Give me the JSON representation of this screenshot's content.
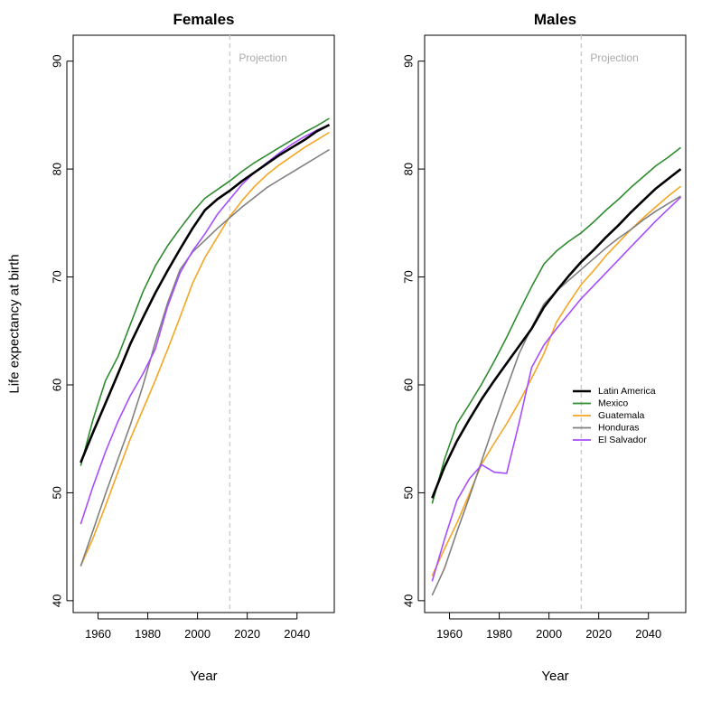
{
  "chart_data": [
    {
      "type": "line",
      "title": "Females",
      "xlabel": "Year",
      "ylabel": "Life expectancy at birth",
      "xlim": [
        1950,
        2055
      ],
      "ylim": [
        38.9,
        92.4
      ],
      "xticks": [
        1960,
        1980,
        2000,
        2020,
        2040
      ],
      "yticks": [
        40,
        50,
        60,
        70,
        80,
        90
      ],
      "projection_year": 2013,
      "projection_label": "Projection",
      "grid": false,
      "series": [
        {
          "name": "Latin America",
          "color": "#000000",
          "x": [
            1953,
            1958,
            1963,
            1968,
            1973,
            1978,
            1983,
            1988,
            1993,
            1998,
            2003,
            2008,
            2013,
            2018,
            2023,
            2028,
            2033,
            2038,
            2043,
            2048,
            2053
          ],
          "y": [
            52.8,
            55.6,
            58.3,
            61.0,
            63.8,
            66.2,
            68.5,
            70.6,
            72.6,
            74.5,
            76.2,
            77.2,
            78.0,
            78.9,
            79.7,
            80.5,
            81.3,
            82.0,
            82.7,
            83.5,
            84.1
          ]
        },
        {
          "name": "Mexico",
          "color": "#2e8b2e",
          "x": [
            1953,
            1958,
            1963,
            1968,
            1973,
            1978,
            1983,
            1988,
            1993,
            1998,
            2003,
            2008,
            2013,
            2018,
            2023,
            2028,
            2033,
            2038,
            2043,
            2048,
            2053
          ],
          "y": [
            52.5,
            56.8,
            60.4,
            62.6,
            65.6,
            68.6,
            71.0,
            72.9,
            74.5,
            76.0,
            77.3,
            78.1,
            78.9,
            79.8,
            80.6,
            81.3,
            82.0,
            82.7,
            83.4,
            84.0,
            84.7
          ]
        },
        {
          "name": "Guatemala",
          "color": "#f5a623",
          "x": [
            1953,
            1958,
            1963,
            1968,
            1973,
            1978,
            1983,
            1988,
            1993,
            1998,
            2003,
            2008,
            2013,
            2018,
            2023,
            2028,
            2033,
            2038,
            2043,
            2048,
            2053
          ],
          "y": [
            43.2,
            45.8,
            48.8,
            51.9,
            55.0,
            57.7,
            60.4,
            63.3,
            66.3,
            69.4,
            71.8,
            73.7,
            75.6,
            77.1,
            78.4,
            79.5,
            80.4,
            81.2,
            82.0,
            82.7,
            83.4
          ]
        },
        {
          "name": "Honduras",
          "color": "#808080",
          "x": [
            1953,
            1958,
            1963,
            1968,
            1973,
            1978,
            1983,
            1988,
            1993,
            1998,
            2003,
            2008,
            2013,
            2018,
            2023,
            2028,
            2033,
            2038,
            2043,
            2048,
            2053
          ],
          "y": [
            43.2,
            46.5,
            49.9,
            53.1,
            56.3,
            59.9,
            63.9,
            67.6,
            70.7,
            72.3,
            73.4,
            74.5,
            75.5,
            76.5,
            77.4,
            78.3,
            79.0,
            79.7,
            80.4,
            81.1,
            81.8
          ]
        },
        {
          "name": "El Salvador",
          "color": "#a64dff",
          "x": [
            1953,
            1958,
            1963,
            1968,
            1973,
            1978,
            1983,
            1988,
            1993,
            1998,
            2003,
            2008,
            2013,
            2018,
            2023,
            2028,
            2033,
            2038,
            2043,
            2048,
            2053
          ],
          "y": [
            47.1,
            50.6,
            53.8,
            56.6,
            59.0,
            61.0,
            63.3,
            67.3,
            70.4,
            72.4,
            74.0,
            75.8,
            77.2,
            78.6,
            79.7,
            80.6,
            81.5,
            82.3,
            83.0,
            83.6,
            84.1
          ]
        }
      ]
    },
    {
      "type": "line",
      "title": "Males",
      "xlabel": "Year",
      "ylabel": "",
      "xlim": [
        1950,
        2055
      ],
      "ylim": [
        38.9,
        92.4
      ],
      "xticks": [
        1960,
        1980,
        2000,
        2020,
        2040
      ],
      "yticks": [
        40,
        50,
        60,
        70,
        80,
        90
      ],
      "projection_year": 2013,
      "projection_label": "Projection",
      "grid": false,
      "legend_position": "right",
      "series": [
        {
          "name": "Latin America",
          "color": "#000000",
          "x": [
            1953,
            1958,
            1963,
            1968,
            1973,
            1978,
            1983,
            1988,
            1993,
            1998,
            2003,
            2008,
            2013,
            2018,
            2023,
            2028,
            2033,
            2038,
            2043,
            2048,
            2053
          ],
          "y": [
            49.5,
            52.4,
            54.8,
            56.8,
            58.7,
            60.4,
            62.0,
            63.6,
            65.2,
            67.2,
            68.7,
            70.1,
            71.4,
            72.5,
            73.7,
            74.8,
            76.0,
            77.1,
            78.2,
            79.1,
            80.0
          ]
        },
        {
          "name": "Mexico",
          "color": "#2e8b2e",
          "x": [
            1953,
            1958,
            1963,
            1968,
            1973,
            1978,
            1983,
            1988,
            1993,
            1998,
            2003,
            2008,
            2013,
            2018,
            2023,
            2028,
            2033,
            2038,
            2043,
            2048,
            2053
          ],
          "y": [
            49.0,
            53.1,
            56.4,
            58.2,
            60.1,
            62.2,
            64.4,
            66.8,
            69.1,
            71.2,
            72.4,
            73.3,
            74.1,
            75.1,
            76.2,
            77.2,
            78.3,
            79.3,
            80.3,
            81.1,
            82.0
          ]
        },
        {
          "name": "Guatemala",
          "color": "#f5a623",
          "x": [
            1953,
            1958,
            1963,
            1968,
            1973,
            1978,
            1983,
            1988,
            1993,
            1998,
            2003,
            2008,
            2013,
            2018,
            2023,
            2028,
            2033,
            2038,
            2043,
            2048,
            2053
          ],
          "y": [
            42.3,
            44.8,
            47.2,
            49.9,
            52.7,
            54.6,
            56.4,
            58.4,
            60.6,
            62.9,
            65.8,
            67.6,
            69.3,
            70.6,
            72.0,
            73.2,
            74.4,
            75.5,
            76.5,
            77.5,
            78.4
          ]
        },
        {
          "name": "Honduras",
          "color": "#808080",
          "x": [
            1953,
            1958,
            1963,
            1968,
            1973,
            1978,
            1983,
            1988,
            1993,
            1998,
            2003,
            2008,
            2013,
            2018,
            2023,
            2028,
            2033,
            2038,
            2043,
            2048,
            2053
          ],
          "y": [
            40.5,
            43.0,
            46.4,
            49.6,
            53.0,
            56.4,
            59.7,
            62.9,
            65.3,
            67.5,
            68.7,
            69.7,
            70.7,
            71.7,
            72.7,
            73.6,
            74.4,
            75.3,
            76.1,
            76.8,
            77.5
          ]
        },
        {
          "name": "El Salvador",
          "color": "#a64dff",
          "x": [
            1953,
            1958,
            1963,
            1968,
            1973,
            1978,
            1983,
            1988,
            1993,
            1998,
            2003,
            2008,
            2013,
            2018,
            2023,
            2028,
            2033,
            2038,
            2043,
            2048,
            2053
          ],
          "y": [
            41.8,
            45.7,
            49.3,
            51.3,
            52.6,
            51.9,
            51.8,
            56.5,
            61.6,
            63.7,
            65.2,
            66.6,
            68.0,
            69.2,
            70.4,
            71.6,
            72.8,
            74.0,
            75.2,
            76.3,
            77.4
          ]
        }
      ]
    }
  ]
}
